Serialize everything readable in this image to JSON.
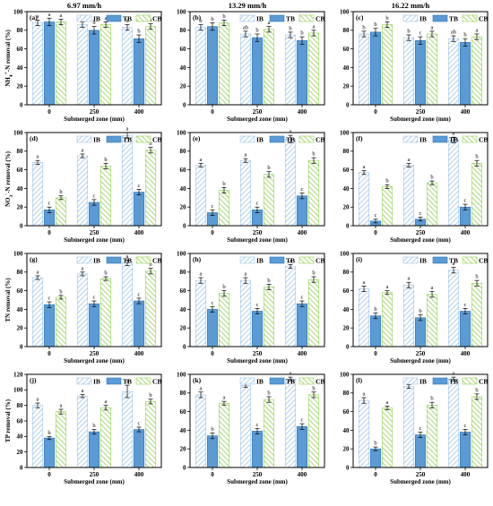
{
  "figure": {
    "column_titles": [
      "6.97 mm/h",
      "13.29 mm/h",
      "16.22 mm/h"
    ],
    "xlabel": "Submerged zone (mm)",
    "categories": [
      "0",
      "250",
      "400"
    ],
    "legend": [
      "IB",
      "TB",
      "CB"
    ],
    "colors": {
      "IB": "#9dc3e6",
      "TB": "#5b9bd5",
      "CB": "#92d050"
    }
  },
  "chart_data": [
    {
      "type": "bar",
      "panel": "(a)",
      "title": "6.97 mm/h",
      "ylabel": "NH4+-N removal (%)",
      "xlabel": "Submerged zone (mm)",
      "categories": [
        "0",
        "250",
        "400"
      ],
      "ylim": [
        0,
        100
      ],
      "series": [
        {
          "name": "IB",
          "values": [
            88,
            86,
            83
          ],
          "errors": [
            3,
            3,
            3
          ],
          "labels": [
            "a",
            "ab",
            "b"
          ]
        },
        {
          "name": "TB",
          "values": [
            89,
            80,
            71
          ],
          "errors": [
            4,
            4,
            4
          ],
          "labels": [
            "a",
            "b",
            "b"
          ]
        },
        {
          "name": "CB",
          "values": [
            89,
            86,
            84
          ],
          "errors": [
            3,
            3,
            3
          ],
          "labels": [
            "a",
            "a",
            "a"
          ]
        }
      ]
    },
    {
      "type": "bar",
      "panel": "(b)",
      "title": "13.29 mm/h",
      "ylabel": "",
      "xlabel": "Submerged zone (mm)",
      "categories": [
        "0",
        "250",
        "400"
      ],
      "ylim": [
        0,
        100
      ],
      "series": [
        {
          "name": "IB",
          "values": [
            83,
            76,
            75
          ],
          "errors": [
            3,
            3,
            3
          ],
          "labels": [
            "b",
            "ab",
            "b"
          ]
        },
        {
          "name": "TB",
          "values": [
            84,
            72,
            69
          ],
          "errors": [
            4,
            4,
            4
          ],
          "labels": [
            "b",
            "b",
            "b"
          ]
        },
        {
          "name": "CB",
          "values": [
            88,
            81,
            77
          ],
          "errors": [
            3,
            3,
            3
          ],
          "labels": [
            "b",
            "a",
            "a"
          ]
        }
      ]
    },
    {
      "type": "bar",
      "panel": "(c)",
      "title": "16.22 mm/h",
      "ylabel": "",
      "xlabel": "Submerged zone (mm)",
      "categories": [
        "0",
        "250",
        "400"
      ],
      "ylim": [
        0,
        100
      ],
      "series": [
        {
          "name": "IB",
          "values": [
            76,
            72,
            71
          ],
          "errors": [
            3,
            3,
            3
          ],
          "labels": [
            "b",
            "b",
            "ab"
          ]
        },
        {
          "name": "TB",
          "values": [
            78,
            69,
            67
          ],
          "errors": [
            4,
            4,
            4
          ],
          "labels": [
            "b",
            "c",
            "b"
          ]
        },
        {
          "name": "CB",
          "values": [
            86,
            76,
            73
          ],
          "errors": [
            3,
            3,
            3
          ],
          "labels": [
            "b",
            "a",
            "a"
          ]
        }
      ]
    },
    {
      "type": "bar",
      "panel": "(d)",
      "ylabel": "NO3--N removal (%)",
      "xlabel": "Submerged zone (mm)",
      "categories": [
        "0",
        "250",
        "400"
      ],
      "ylim": [
        0,
        100
      ],
      "series": [
        {
          "name": "IB",
          "values": [
            68,
            75,
            97
          ],
          "errors": [
            2,
            2,
            3
          ],
          "labels": [
            "a",
            "a",
            "a"
          ]
        },
        {
          "name": "TB",
          "values": [
            17,
            25,
            36
          ],
          "errors": [
            3,
            3,
            3
          ],
          "labels": [
            "c",
            "c",
            "c"
          ]
        },
        {
          "name": "CB",
          "values": [
            30,
            64,
            81
          ],
          "errors": [
            2,
            3,
            3
          ],
          "labels": [
            "b",
            "b",
            "b"
          ]
        }
      ]
    },
    {
      "type": "bar",
      "panel": "(e)",
      "ylabel": "",
      "xlabel": "Submerged zone (mm)",
      "categories": [
        "0",
        "250",
        "400"
      ],
      "ylim": [
        0,
        100
      ],
      "series": [
        {
          "name": "IB",
          "values": [
            65,
            70,
            93
          ],
          "errors": [
            2,
            2,
            4
          ],
          "labels": [
            "a",
            "a",
            "a"
          ]
        },
        {
          "name": "TB",
          "values": [
            14,
            17,
            32
          ],
          "errors": [
            3,
            3,
            3
          ],
          "labels": [
            "c",
            "c",
            "c"
          ]
        },
        {
          "name": "CB",
          "values": [
            38,
            55,
            70
          ],
          "errors": [
            3,
            3,
            3
          ],
          "labels": [
            "b",
            "b",
            "b"
          ]
        }
      ]
    },
    {
      "type": "bar",
      "panel": "(f)",
      "ylabel": "",
      "xlabel": "Submerged zone (mm)",
      "categories": [
        "0",
        "250",
        "400"
      ],
      "ylim": [
        0,
        100
      ],
      "series": [
        {
          "name": "IB",
          "values": [
            57,
            65,
            92
          ],
          "errors": [
            2,
            2,
            3
          ],
          "labels": [
            "a",
            "a",
            "a"
          ]
        },
        {
          "name": "TB",
          "values": [
            5,
            7,
            20
          ],
          "errors": [
            2,
            2,
            3
          ],
          "labels": [
            "c",
            "c",
            "c"
          ]
        },
        {
          "name": "CB",
          "values": [
            42,
            46,
            67
          ],
          "errors": [
            2,
            2,
            3
          ],
          "labels": [
            "b",
            "b",
            "b"
          ]
        }
      ]
    },
    {
      "type": "bar",
      "panel": "(g)",
      "ylabel": "TN removal (%)",
      "xlabel": "Submerged zone (mm)",
      "categories": [
        "0",
        "250",
        "400"
      ],
      "ylim": [
        0,
        100
      ],
      "series": [
        {
          "name": "IB",
          "values": [
            74,
            78,
            90
          ],
          "errors": [
            2,
            2,
            3
          ],
          "labels": [
            "a",
            "a",
            "a"
          ]
        },
        {
          "name": "TB",
          "values": [
            45,
            46,
            49
          ],
          "errors": [
            3,
            3,
            3
          ],
          "labels": [
            "c",
            "c",
            "c"
          ]
        },
        {
          "name": "CB",
          "values": [
            53,
            73,
            81
          ],
          "errors": [
            2,
            2,
            3
          ],
          "labels": [
            "b",
            "b",
            "b"
          ]
        }
      ]
    },
    {
      "type": "bar",
      "panel": "(h)",
      "ylabel": "",
      "xlabel": "Submerged zone (mm)",
      "categories": [
        "0",
        "250",
        "400"
      ],
      "ylim": [
        0,
        100
      ],
      "series": [
        {
          "name": "IB",
          "values": [
            71,
            71,
            86
          ],
          "errors": [
            3,
            3,
            2
          ],
          "labels": [
            "a",
            "a",
            "a"
          ]
        },
        {
          "name": "TB",
          "values": [
            40,
            38,
            46
          ],
          "errors": [
            3,
            3,
            3
          ],
          "labels": [
            "c",
            "c",
            "c"
          ]
        },
        {
          "name": "CB",
          "values": [
            57,
            64,
            72
          ],
          "errors": [
            3,
            3,
            3
          ],
          "labels": [
            "b",
            "b",
            "b"
          ]
        }
      ]
    },
    {
      "type": "bar",
      "panel": "(i)",
      "ylabel": "",
      "xlabel": "Submerged zone (mm)",
      "categories": [
        "0",
        "250",
        "400"
      ],
      "ylim": [
        0,
        100
      ],
      "series": [
        {
          "name": "IB",
          "values": [
            62,
            66,
            82
          ],
          "errors": [
            3,
            3,
            3
          ],
          "labels": [
            "a",
            "a",
            "a"
          ]
        },
        {
          "name": "TB",
          "values": [
            33,
            31,
            38
          ],
          "errors": [
            3,
            3,
            3
          ],
          "labels": [
            "b",
            "b",
            "c"
          ]
        },
        {
          "name": "CB",
          "values": [
            58,
            56,
            68
          ],
          "errors": [
            2,
            3,
            3
          ],
          "labels": [
            "a",
            "a",
            "b"
          ]
        }
      ]
    },
    {
      "type": "bar",
      "panel": "(j)",
      "ylabel": "TP removal (%)",
      "xlabel": "Submerged zone (mm)",
      "categories": [
        "0",
        "250",
        "400"
      ],
      "ylim": [
        0,
        120
      ],
      "series": [
        {
          "name": "IB",
          "values": [
            80,
            92,
            98
          ],
          "errors": [
            3,
            2,
            8
          ],
          "labels": [
            "a",
            "a",
            "a"
          ]
        },
        {
          "name": "TB",
          "values": [
            38,
            46,
            49
          ],
          "errors": [
            2,
            3,
            3
          ],
          "labels": [
            "b",
            "b",
            "c"
          ]
        },
        {
          "name": "CB",
          "values": [
            72,
            77,
            85
          ],
          "errors": [
            3,
            3,
            3
          ],
          "labels": [
            "a",
            "a",
            "b"
          ]
        }
      ]
    },
    {
      "type": "bar",
      "panel": "(k)",
      "ylabel": "",
      "xlabel": "Submerged zone (mm)",
      "categories": [
        "0",
        "250",
        "400"
      ],
      "ylim": [
        0,
        100
      ],
      "series": [
        {
          "name": "IB",
          "values": [
            78,
            88,
            95
          ],
          "errors": [
            3,
            2,
            2
          ],
          "labels": [
            "a",
            "a",
            "a"
          ]
        },
        {
          "name": "TB",
          "values": [
            34,
            39,
            44
          ],
          "errors": [
            3,
            3,
            3
          ],
          "labels": [
            "b",
            "c",
            "c"
          ]
        },
        {
          "name": "CB",
          "values": [
            69,
            73,
            78
          ],
          "errors": [
            2,
            3,
            3
          ],
          "labels": [
            "a",
            "b",
            "b"
          ]
        }
      ]
    },
    {
      "type": "bar",
      "panel": "(l)",
      "ylabel": "",
      "xlabel": "Submerged zone (mm)",
      "categories": [
        "0",
        "250",
        "400"
      ],
      "ylim": [
        0,
        100
      ],
      "series": [
        {
          "name": "IB",
          "values": [
            72,
            87,
            95
          ],
          "errors": [
            3,
            2,
            2
          ],
          "labels": [
            "a",
            "a",
            "a"
          ]
        },
        {
          "name": "TB",
          "values": [
            20,
            35,
            38
          ],
          "errors": [
            2,
            3,
            3
          ],
          "labels": [
            "b",
            "c",
            "c"
          ]
        },
        {
          "name": "CB",
          "values": [
            64,
            67,
            76
          ],
          "errors": [
            2,
            3,
            3
          ],
          "labels": [
            "a",
            "b",
            "b"
          ]
        }
      ]
    }
  ]
}
